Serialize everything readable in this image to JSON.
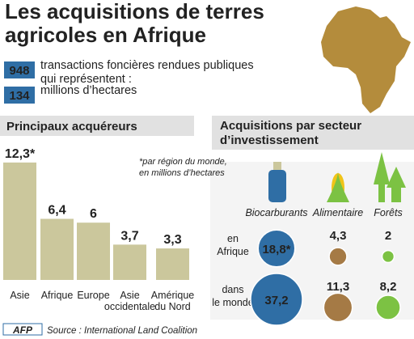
{
  "header": {
    "title": "Les acquisitions de terres\nagricoles en Afrique",
    "stats": [
      {
        "value": "948",
        "text": "transactions foncières rendues publiques\nqui représentent :"
      },
      {
        "value": "134",
        "text": "millions d’hectares"
      }
    ]
  },
  "chart_data": [
    {
      "type": "bar",
      "title": "Principaux acquéreurs",
      "note": "*par région du monde,\nen millions d’hectares",
      "categories": [
        "Asie",
        "Afrique",
        "Europe",
        "Asie\noccidentale",
        "Amérique\ndu Nord"
      ],
      "values": [
        12.3,
        6.4,
        6,
        3.7,
        3.3
      ],
      "value_labels": [
        "12,3*",
        "6,4",
        "6",
        "3,7",
        "3,3"
      ],
      "color": "#cbc79c"
    },
    {
      "type": "bubble",
      "title": "Acquisitions par secteur\nd’investissement",
      "categories": [
        "Biocarburants",
        "Alimentaire",
        "Forêts"
      ],
      "colors": [
        "#2f6ea5",
        "#a57a45",
        "#7cc243"
      ],
      "series": [
        {
          "name": "en\nAfrique",
          "values": [
            18.8,
            4.3,
            2
          ],
          "value_labels": [
            "18,8*",
            "4,3",
            "2"
          ]
        },
        {
          "name": "dans\nle monde",
          "values": [
            37.2,
            11.3,
            8.2
          ],
          "value_labels": [
            "37,2",
            "11,3",
            "8,2"
          ]
        }
      ]
    }
  ],
  "footer": {
    "logo": "AFP",
    "source": "Source : International Land Coalition"
  }
}
